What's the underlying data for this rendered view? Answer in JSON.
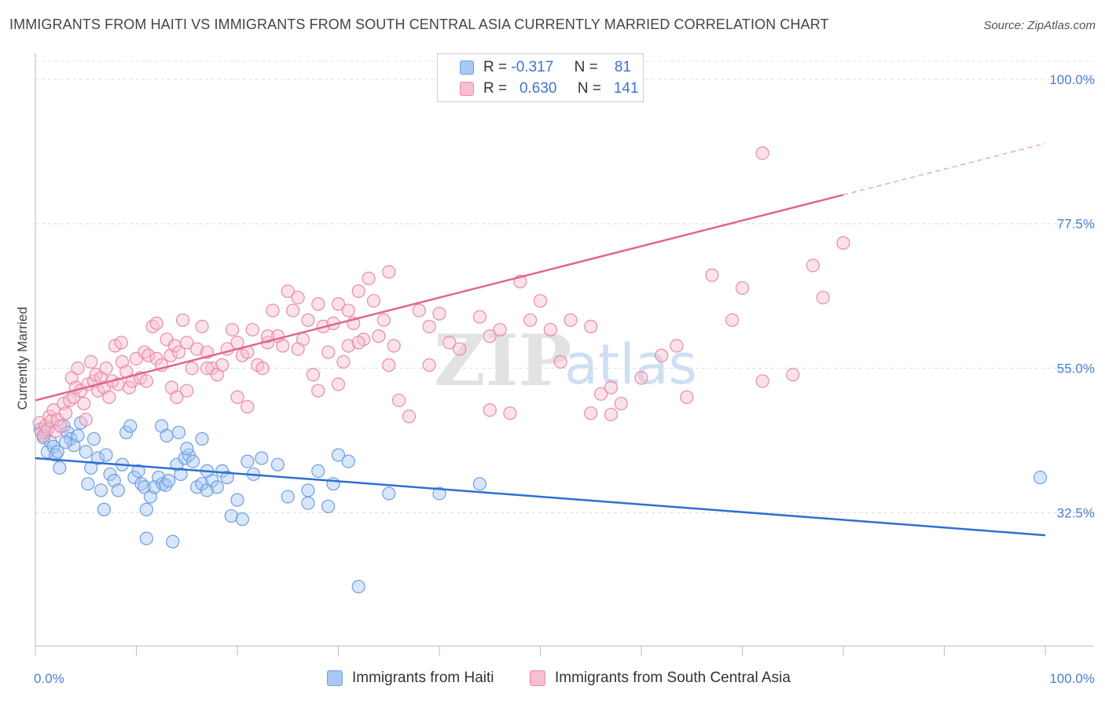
{
  "title": "IMMIGRANTS FROM HAITI VS IMMIGRANTS FROM SOUTH CENTRAL ASIA CURRENTLY MARRIED CORRELATION CHART",
  "source": "Source: ZipAtlas.com",
  "legend_top": {
    "rows": [
      {
        "r_label": "R =",
        "r_value": "-0.317",
        "n_label": "N =",
        "n_value": "81",
        "color": "#a9c8f3",
        "border": "#6e9ee0"
      },
      {
        "r_label": "R =",
        "r_value": "0.630",
        "n_label": "N =",
        "n_value": "141",
        "color": "#f7bfd0",
        "border": "#e98aa8"
      }
    ]
  },
  "watermark": {
    "zip": "ZIP",
    "atlas": "atlas"
  },
  "chart_data": {
    "type": "scatter",
    "ylabel": "Currently Married",
    "xlim": [
      0,
      100
    ],
    "ylim": [
      12,
      105
    ],
    "x_tick_labels": [
      {
        "value": 0,
        "label": "0.0%"
      },
      {
        "value": 100,
        "label": "100.0%"
      }
    ],
    "x_minor_ticks": [
      0,
      10,
      20,
      30,
      40,
      50,
      60,
      70,
      80,
      90,
      100
    ],
    "y_ticks": [
      {
        "value": 100,
        "label": "100.0%"
      },
      {
        "value": 77.5,
        "label": "77.5%"
      },
      {
        "value": 55,
        "label": "55.0%"
      },
      {
        "value": 32.5,
        "label": "32.5%"
      }
    ],
    "grid": true,
    "legend_position": "bottom",
    "series": [
      {
        "name": "Immigrants from Haiti",
        "color": "#a9c8f3",
        "stroke": "#6e9ee0",
        "line_color": "#2f6fd0",
        "trend": {
          "x": [
            0,
            100
          ],
          "y": [
            41.0,
            29.0
          ]
        },
        "points": [
          [
            0.5,
            45.5
          ],
          [
            0.8,
            44.2
          ],
          [
            1.0,
            45.0
          ],
          [
            1.2,
            42.0
          ],
          [
            1.5,
            43.5
          ],
          [
            1.8,
            42.8
          ],
          [
            2.0,
            41.5
          ],
          [
            2.2,
            42.0
          ],
          [
            2.4,
            39.5
          ],
          [
            2.8,
            46.0
          ],
          [
            3.2,
            45.0
          ],
          [
            3.5,
            44.0
          ],
          [
            3.8,
            43.0
          ],
          [
            4.2,
            44.5
          ],
          [
            4.5,
            46.5
          ],
          [
            5.0,
            42.0
          ],
          [
            5.2,
            37.0
          ],
          [
            5.5,
            39.5
          ],
          [
            5.8,
            44.0
          ],
          [
            6.2,
            41.0
          ],
          [
            6.5,
            36.0
          ],
          [
            6.8,
            33.0
          ],
          [
            7.0,
            41.5
          ],
          [
            7.4,
            38.5
          ],
          [
            7.8,
            37.5
          ],
          [
            8.2,
            36.0
          ],
          [
            8.6,
            40.0
          ],
          [
            9.0,
            45.0
          ],
          [
            9.4,
            46.0
          ],
          [
            9.8,
            38.0
          ],
          [
            10.2,
            39.0
          ],
          [
            10.5,
            37.0
          ],
          [
            10.8,
            36.5
          ],
          [
            11.0,
            33.0
          ],
          [
            11.4,
            35.0
          ],
          [
            11.8,
            36.5
          ],
          [
            12.2,
            38.0
          ],
          [
            12.6,
            37.0
          ],
          [
            12.9,
            36.8
          ],
          [
            13.2,
            37.5
          ],
          [
            13.6,
            28.0
          ],
          [
            14.0,
            40.0
          ],
          [
            14.4,
            38.5
          ],
          [
            14.8,
            41.0
          ],
          [
            15.2,
            41.5
          ],
          [
            15.6,
            40.5
          ],
          [
            16.0,
            36.5
          ],
          [
            16.5,
            37.0
          ],
          [
            17.0,
            36.0
          ],
          [
            17.5,
            37.5
          ],
          [
            18.0,
            36.5
          ],
          [
            18.5,
            39.0
          ],
          [
            19.0,
            38.0
          ],
          [
            19.4,
            32.0
          ],
          [
            20.0,
            34.5
          ],
          [
            20.5,
            31.5
          ],
          [
            21.0,
            40.5
          ],
          [
            21.6,
            38.5
          ],
          [
            22.4,
            41.0
          ],
          [
            24.0,
            40.0
          ],
          [
            25.0,
            35.0
          ],
          [
            27.0,
            34.0
          ],
          [
            29.0,
            33.5
          ],
          [
            11.0,
            28.5
          ],
          [
            12.5,
            46.0
          ],
          [
            13.0,
            44.5
          ],
          [
            14.2,
            45.0
          ],
          [
            15.0,
            42.5
          ],
          [
            16.5,
            44.0
          ],
          [
            17.0,
            39.0
          ],
          [
            30.0,
            41.5
          ],
          [
            31.0,
            40.5
          ],
          [
            27.0,
            36.0
          ],
          [
            28.0,
            39.0
          ],
          [
            29.5,
            37.0
          ],
          [
            40.0,
            35.5
          ],
          [
            35.0,
            35.5
          ],
          [
            32.0,
            21.0
          ],
          [
            44.0,
            37.0
          ],
          [
            99.5,
            38.0
          ],
          [
            3.0,
            43.5
          ]
        ]
      },
      {
        "name": "Immigrants from South Central Asia",
        "color": "#f7bfd0",
        "stroke": "#e98aa8",
        "line_color": "#e0668f",
        "trend": {
          "x": [
            0,
            80
          ],
          "y": [
            50.0,
            82.0
          ]
        },
        "trend_dashed": {
          "x": [
            80,
            100
          ],
          "y": [
            82.0,
            90.0
          ]
        },
        "points": [
          [
            0.4,
            46.5
          ],
          [
            0.6,
            45.0
          ],
          [
            0.8,
            44.5
          ],
          [
            1.0,
            46.0
          ],
          [
            1.2,
            45.5
          ],
          [
            1.4,
            47.5
          ],
          [
            1.6,
            46.8
          ],
          [
            1.8,
            48.5
          ],
          [
            2.0,
            45.2
          ],
          [
            2.2,
            47.0
          ],
          [
            2.5,
            46.0
          ],
          [
            2.8,
            49.5
          ],
          [
            3.0,
            48.0
          ],
          [
            3.4,
            50.0
          ],
          [
            3.6,
            53.5
          ],
          [
            3.8,
            50.5
          ],
          [
            4.0,
            52.0
          ],
          [
            4.2,
            55.0
          ],
          [
            4.5,
            51.5
          ],
          [
            4.8,
            49.5
          ],
          [
            5.0,
            47.0
          ],
          [
            5.2,
            52.5
          ],
          [
            5.5,
            56.0
          ],
          [
            5.8,
            53.0
          ],
          [
            6.0,
            54.0
          ],
          [
            6.2,
            51.5
          ],
          [
            6.5,
            53.5
          ],
          [
            6.8,
            52.0
          ],
          [
            7.0,
            55.0
          ],
          [
            7.3,
            50.5
          ],
          [
            7.6,
            53.0
          ],
          [
            7.9,
            58.5
          ],
          [
            8.2,
            52.5
          ],
          [
            8.6,
            56.0
          ],
          [
            9.0,
            54.5
          ],
          [
            9.3,
            52.0
          ],
          [
            9.6,
            53.0
          ],
          [
            10.0,
            56.5
          ],
          [
            10.4,
            53.5
          ],
          [
            10.8,
            57.5
          ],
          [
            11.2,
            57.0
          ],
          [
            11.6,
            61.5
          ],
          [
            12.0,
            56.5
          ],
          [
            12.5,
            55.5
          ],
          [
            13.0,
            59.5
          ],
          [
            13.4,
            57.0
          ],
          [
            13.8,
            58.5
          ],
          [
            14.2,
            57.5
          ],
          [
            14.6,
            62.5
          ],
          [
            15.0,
            59.0
          ],
          [
            15.5,
            55.0
          ],
          [
            16.0,
            58.0
          ],
          [
            16.5,
            61.5
          ],
          [
            17.0,
            57.5
          ],
          [
            17.5,
            55.0
          ],
          [
            18.0,
            54.0
          ],
          [
            18.5,
            55.5
          ],
          [
            19.0,
            58.0
          ],
          [
            19.5,
            61.0
          ],
          [
            20.0,
            59.0
          ],
          [
            20.5,
            57.0
          ],
          [
            21.0,
            57.5
          ],
          [
            21.5,
            61.0
          ],
          [
            22.0,
            55.5
          ],
          [
            22.5,
            55.0
          ],
          [
            23.0,
            59.0
          ],
          [
            23.5,
            64.0
          ],
          [
            24.0,
            60.0
          ],
          [
            24.5,
            58.5
          ],
          [
            25.0,
            67.0
          ],
          [
            25.5,
            64.0
          ],
          [
            26.0,
            66.0
          ],
          [
            26.5,
            59.5
          ],
          [
            27.0,
            62.5
          ],
          [
            27.5,
            54.0
          ],
          [
            28.0,
            65.0
          ],
          [
            28.5,
            61.5
          ],
          [
            29.0,
            57.5
          ],
          [
            29.5,
            62.0
          ],
          [
            30.0,
            65.0
          ],
          [
            30.5,
            56.0
          ],
          [
            31.0,
            64.0
          ],
          [
            31.5,
            62.0
          ],
          [
            32.0,
            67.0
          ],
          [
            32.5,
            59.5
          ],
          [
            33.0,
            69.0
          ],
          [
            33.5,
            65.5
          ],
          [
            34.0,
            60.0
          ],
          [
            34.5,
            62.5
          ],
          [
            35.0,
            55.5
          ],
          [
            35.5,
            58.5
          ],
          [
            36.0,
            50.0
          ],
          [
            37.0,
            47.5
          ],
          [
            38.0,
            64.0
          ],
          [
            39.0,
            61.5
          ],
          [
            40.0,
            63.5
          ],
          [
            41.0,
            59.0
          ],
          [
            42.0,
            58.0
          ],
          [
            44.0,
            63.0
          ],
          [
            45.0,
            60.0
          ],
          [
            46.0,
            61.0
          ],
          [
            47.0,
            48.0
          ],
          [
            48.0,
            68.5
          ],
          [
            49.0,
            62.5
          ],
          [
            50.0,
            65.5
          ],
          [
            51.0,
            61.0
          ],
          [
            52.0,
            56.0
          ],
          [
            53.0,
            62.5
          ],
          [
            55.0,
            61.5
          ],
          [
            56.0,
            51.0
          ],
          [
            57.0,
            52.0
          ],
          [
            58.0,
            49.5
          ],
          [
            60.0,
            53.5
          ],
          [
            62.0,
            57.0
          ],
          [
            63.5,
            58.5
          ],
          [
            64.5,
            50.5
          ],
          [
            67.0,
            69.5
          ],
          [
            69.0,
            62.5
          ],
          [
            70.0,
            67.5
          ],
          [
            72.0,
            53.0
          ],
          [
            75.0,
            54.0
          ],
          [
            77.0,
            71.0
          ],
          [
            78.0,
            66.0
          ],
          [
            80.0,
            74.5
          ],
          [
            12.0,
            62.0
          ],
          [
            11.0,
            53.0
          ],
          [
            13.5,
            52.0
          ],
          [
            15.0,
            51.5
          ],
          [
            8.5,
            59.0
          ],
          [
            31.0,
            58.5
          ],
          [
            17.0,
            55.0
          ],
          [
            39.0,
            55.5
          ],
          [
            45.0,
            48.5
          ],
          [
            55.0,
            48.0
          ],
          [
            57.0,
            47.8
          ],
          [
            28.0,
            51.5
          ],
          [
            20.0,
            50.5
          ],
          [
            14.0,
            50.5
          ],
          [
            21.0,
            49.0
          ],
          [
            23.0,
            60.0
          ],
          [
            32.0,
            59.0
          ],
          [
            35.0,
            70.0
          ],
          [
            72.0,
            88.5
          ],
          [
            26.0,
            58.0
          ],
          [
            30.0,
            52.5
          ]
        ]
      }
    ]
  }
}
